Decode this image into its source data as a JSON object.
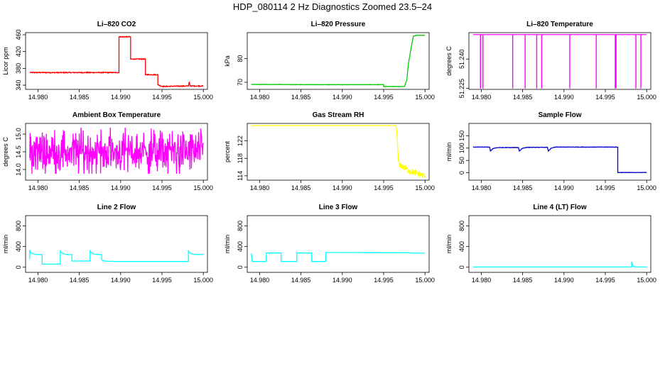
{
  "figure": {
    "title": "HDP_080114  2 Hz Diagnostics Zoomed 23.5–24"
  },
  "chart_data": [
    {
      "type": "line",
      "title": "Li–820 CO2",
      "xlabel": "",
      "ylabel": "Licor ppm",
      "color": "#ff0000",
      "xlim": [
        14.9785,
        15.0005
      ],
      "ylim": [
        330,
        465
      ],
      "xticks": [
        14.98,
        14.985,
        14.99,
        14.995,
        15.0
      ],
      "xtick_labels": [
        "14.980",
        "14.985",
        "14.990",
        "14.995",
        "15.000"
      ],
      "yticks": [
        340,
        380,
        420,
        460
      ],
      "ytick_labels": [
        "340",
        "380",
        "420",
        "460"
      ],
      "noise": 1,
      "x": [
        14.979,
        14.9898,
        14.9898,
        14.9912,
        14.9912,
        14.993,
        14.993,
        14.9945,
        14.9945,
        14.995,
        14.9982,
        14.9983,
        14.9984,
        14.999,
        15.0
      ],
      "y": [
        370,
        370,
        455,
        455,
        402,
        402,
        365,
        365,
        341,
        337,
        338,
        348,
        338,
        338,
        338
      ]
    },
    {
      "type": "line",
      "title": "Li–820 Pressure",
      "xlabel": "",
      "ylabel": "kPa",
      "color": "#00cc00",
      "xlim": [
        14.9785,
        15.0005
      ],
      "ylim": [
        67,
        91
      ],
      "xticks": [
        14.98,
        14.985,
        14.99,
        14.995,
        15.0
      ],
      "xtick_labels": [
        "14.980",
        "14.985",
        "14.990",
        "14.995",
        "15.000"
      ],
      "yticks": [
        70,
        80
      ],
      "ytick_labels": [
        "70",
        "80"
      ],
      "noise": 0.08,
      "x": [
        14.979,
        14.985,
        14.99,
        14.995,
        14.995,
        14.9975,
        14.9978,
        14.998,
        14.9984,
        14.9986,
        14.999,
        15.0
      ],
      "y": [
        69.1,
        69.0,
        69.0,
        69.0,
        68.2,
        68.2,
        71,
        78,
        86,
        89.5,
        89.9,
        89.9
      ]
    },
    {
      "type": "line",
      "title": "Li–820 Temperature",
      "xlabel": "",
      "ylabel": "degrees C",
      "color": "#ff00ff",
      "xlim": [
        14.9785,
        15.0005
      ],
      "ylim": [
        51.2245,
        51.2535
      ],
      "xticks": [
        14.98,
        14.985,
        14.99,
        14.995,
        15.0
      ],
      "xtick_labels": [
        "14.980",
        "14.985",
        "14.990",
        "14.995",
        "15.000"
      ],
      "yticks": [
        51.225,
        51.24
      ],
      "ytick_labels": [
        "51.225",
        "51.240"
      ],
      "baseline": 51.2525,
      "drop_value": 51.225,
      "drop_x": [
        14.9799,
        14.9802,
        14.9838,
        14.9853,
        14.9867,
        14.9873,
        14.9907,
        14.9939,
        14.9962,
        14.9963,
        14.9987,
        14.9993
      ]
    },
    {
      "type": "line",
      "title": "Ambient Box Temperature",
      "xlabel": "",
      "ylabel": "degrees C",
      "color": "#ff00ff",
      "xlim": [
        14.9785,
        15.0005
      ],
      "ylim": [
        13.7,
        15.3
      ],
      "xticks": [
        14.98,
        14.985,
        14.99,
        14.995,
        15.0
      ],
      "xtick_labels": [
        "14.980",
        "14.985",
        "14.990",
        "14.995",
        "15.000"
      ],
      "yticks": [
        14.0,
        14.5,
        15.0
      ],
      "ytick_labels": [
        "14.0",
        "14.5",
        "15.0"
      ],
      "noise_center": 14.5,
      "noise_range": [
        13.88,
        15.18
      ],
      "x_start": 14.979,
      "x_end": 15.0
    },
    {
      "type": "line",
      "title": "Gas Stream RH",
      "xlabel": "",
      "ylabel": "percent",
      "color": "#ffff00",
      "xlim": [
        14.9785,
        15.0005
      ],
      "ylim": [
        113,
        126
      ],
      "xticks": [
        14.98,
        14.985,
        14.99,
        14.995,
        15.0
      ],
      "xtick_labels": [
        "14.980",
        "14.985",
        "14.990",
        "14.995",
        "15.000"
      ],
      "yticks": [
        114,
        118,
        122
      ],
      "ytick_labels": [
        "114",
        "118",
        "122"
      ],
      "noise": 0,
      "x": [
        14.979,
        14.9965,
        14.9966,
        14.9967,
        14.9968,
        14.997,
        14.9975,
        14.998,
        14.999,
        15.0
      ],
      "y": [
        125.5,
        125.5,
        124,
        120,
        117.5,
        116.5,
        115.8,
        115.2,
        114.6,
        114.0
      ],
      "tail_noise": 0.7
    },
    {
      "type": "line",
      "title": "Sample Flow",
      "xlabel": "",
      "ylabel": "ml/min",
      "color": "#0000cc",
      "xlim": [
        14.9785,
        15.0005
      ],
      "ylim": [
        -30,
        200
      ],
      "xticks": [
        14.98,
        14.985,
        14.99,
        14.995,
        15.0
      ],
      "xtick_labels": [
        "14.980",
        "14.985",
        "14.990",
        "14.995",
        "15.000"
      ],
      "yticks": [
        0,
        50,
        100,
        150
      ],
      "ytick_labels": [
        "0",
        "50",
        "100",
        "150"
      ],
      "noise": 0.8,
      "x": [
        14.979,
        14.981,
        14.9811,
        14.9813,
        14.9814,
        14.9816,
        14.982,
        14.9845,
        14.9846,
        14.9848,
        14.9849,
        14.9851,
        14.9855,
        14.988,
        14.9881,
        14.9883,
        14.9884,
        14.9886,
        14.989,
        14.9965,
        14.9965,
        15.0
      ],
      "y": [
        104,
        104,
        88,
        94,
        98,
        100,
        102,
        102,
        88,
        94,
        98,
        100,
        103,
        103,
        88,
        94,
        99,
        101,
        104,
        104,
        1,
        1
      ]
    },
    {
      "type": "line",
      "title": "Line 2 Flow",
      "xlabel": "",
      "ylabel": "ml/min",
      "color": "#00ffff",
      "xlim": [
        14.9785,
        15.0005
      ],
      "ylim": [
        -100,
        1000
      ],
      "xticks": [
        14.98,
        14.985,
        14.99,
        14.995,
        15.0
      ],
      "xtick_labels": [
        "14.980",
        "14.985",
        "14.990",
        "14.995",
        "15.000"
      ],
      "yticks": [
        0,
        400,
        800
      ],
      "ytick_labels": [
        "0",
        "400",
        "800"
      ],
      "noise": 0,
      "x": [
        14.979,
        14.979,
        14.9791,
        14.9793,
        14.9796,
        14.98,
        14.9805,
        14.9805,
        14.9827,
        14.9827,
        14.9828,
        14.983,
        14.9833,
        14.9837,
        14.9841,
        14.9841,
        14.9863,
        14.9863,
        14.9864,
        14.9866,
        14.9869,
        14.9873,
        14.9877,
        14.9877,
        14.9878,
        14.988,
        14.9884,
        14.99,
        14.9982,
        14.9982,
        14.9983,
        14.9985,
        14.9988,
        14.9992,
        15.0
      ],
      "y": [
        150,
        330,
        290,
        265,
        250,
        245,
        245,
        60,
        60,
        330,
        290,
        265,
        250,
        245,
        245,
        120,
        120,
        330,
        290,
        265,
        250,
        245,
        245,
        155,
        130,
        120,
        115,
        110,
        110,
        330,
        290,
        265,
        250,
        245,
        245
      ]
    },
    {
      "type": "line",
      "title": "Line 3 Flow",
      "xlabel": "",
      "ylabel": "ml/min",
      "color": "#00ffff",
      "xlim": [
        14.9785,
        15.0005
      ],
      "ylim": [
        -100,
        1000
      ],
      "xticks": [
        14.98,
        14.985,
        14.99,
        14.995,
        15.0
      ],
      "xtick_labels": [
        "14.980",
        "14.985",
        "14.990",
        "14.995",
        "15.000"
      ],
      "yticks": [
        0,
        400,
        800
      ],
      "ytick_labels": [
        "0",
        "400",
        "800"
      ],
      "noise": 0,
      "x": [
        14.979,
        14.979,
        14.9791,
        14.9808,
        14.9808,
        14.9826,
        14.9826,
        14.9845,
        14.9845,
        14.9863,
        14.9863,
        14.988,
        14.988,
        14.9982,
        14.9983,
        15.0
      ],
      "y": [
        270,
        270,
        110,
        110,
        275,
        275,
        110,
        110,
        275,
        275,
        110,
        110,
        285,
        280,
        272,
        272
      ]
    },
    {
      "type": "line",
      "title": "Line 4 (LT) Flow",
      "xlabel": "",
      "ylabel": "ml/min",
      "color": "#00ffff",
      "xlim": [
        14.9785,
        15.0005
      ],
      "ylim": [
        -100,
        1000
      ],
      "xticks": [
        14.98,
        14.985,
        14.99,
        14.995,
        15.0
      ],
      "xtick_labels": [
        "14.980",
        "14.985",
        "14.990",
        "14.995",
        "15.000"
      ],
      "yticks": [
        0,
        400,
        800
      ],
      "ytick_labels": [
        "0",
        "400",
        "800"
      ],
      "noise": 0,
      "x": [
        14.979,
        14.9982,
        14.9982,
        14.9983,
        14.9985,
        14.9988,
        15.0
      ],
      "y": [
        5,
        5,
        110,
        30,
        10,
        5,
        5
      ]
    }
  ]
}
